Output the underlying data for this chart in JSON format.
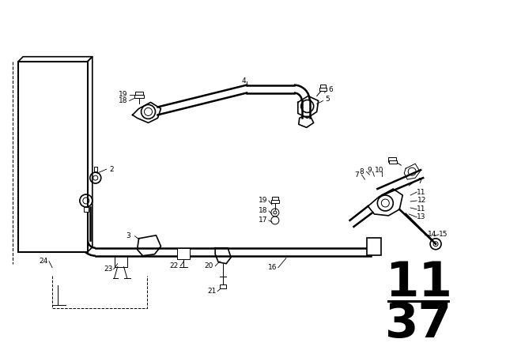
{
  "background_color": "#ffffff",
  "page_number_top": "11",
  "page_number_bottom": "37",
  "page_number_fontsize": 44,
  "figsize": [
    6.4,
    4.48
  ],
  "dpi": 100
}
